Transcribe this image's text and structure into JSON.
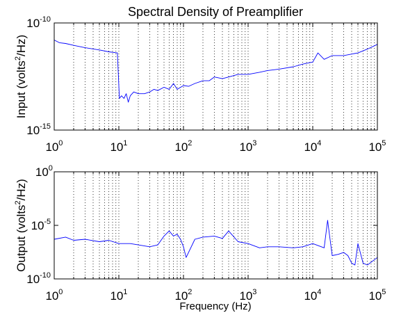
{
  "figure": {
    "title": "Spectral Density of Preamplifier",
    "xlabel": "Frequency (Hz)"
  },
  "chart_data": [
    {
      "type": "line",
      "ylabel": {
        "prefix": "Input (volts",
        "sup": "2",
        "suffix": "/Hz)"
      },
      "xscale": "log",
      "yscale": "log",
      "xlim": [
        1,
        100000
      ],
      "ylim": [
        1e-15,
        1e-10
      ],
      "grid": "dotted, x-axis (major and minor)",
      "line_color": "#0000ff",
      "x_tick_labels": [
        {
          "base": "10",
          "exp": "0"
        },
        {
          "base": "10",
          "exp": "1"
        },
        {
          "base": "10",
          "exp": "2"
        },
        {
          "base": "10",
          "exp": "3"
        },
        {
          "base": "10",
          "exp": "4"
        },
        {
          "base": "10",
          "exp": "5"
        }
      ],
      "y_tick_labels": [
        {
          "base": "10",
          "exp": "-15"
        },
        {
          "base": "10",
          "exp": "-10"
        }
      ],
      "series": [
        {
          "x": [
            1,
            1.2,
            1.5,
            2,
            3,
            5,
            7,
            9.5,
            10.2,
            11,
            12,
            13,
            14,
            15,
            17,
            20,
            25,
            30,
            35,
            40,
            50,
            60,
            70,
            80,
            100,
            120,
            150,
            200,
            250,
            300,
            400,
            500,
            700,
            1000,
            1500,
            2000,
            3000,
            5000,
            7000,
            10000,
            12000,
            15000,
            20000,
            30000,
            50000,
            70000,
            100000
          ],
          "y": [
            1.6e-11,
            1.2e-11,
            1.1e-11,
            9e-12,
            7e-12,
            5.5e-12,
            4.5e-12,
            4e-12,
            3e-14,
            4e-14,
            3e-14,
            5e-14,
            2e-14,
            4e-14,
            6e-14,
            5e-14,
            5e-14,
            6e-14,
            8e-14,
            7e-14,
            1e-13,
            8e-14,
            1.5e-13,
            8e-14,
            1.2e-13,
            1.1e-13,
            1.5e-13,
            2e-13,
            2e-13,
            3e-13,
            2.5e-13,
            3e-13,
            4e-13,
            4e-13,
            5e-13,
            6e-13,
            7e-13,
            9e-13,
            1.2e-12,
            1.5e-12,
            4e-12,
            2e-12,
            3e-12,
            3e-12,
            4e-12,
            6e-12,
            1e-11
          ]
        }
      ]
    },
    {
      "type": "line",
      "ylabel": {
        "prefix": "Output  (volts",
        "sup": "2",
        "suffix": "/Hz)"
      },
      "xscale": "log",
      "yscale": "log",
      "xlim": [
        1,
        100000
      ],
      "ylim": [
        1e-10,
        1
      ],
      "grid": "dotted, x-axis (major and minor)",
      "line_color": "#0000ff",
      "x_tick_labels": [
        {
          "base": "10",
          "exp": "0"
        },
        {
          "base": "10",
          "exp": "1"
        },
        {
          "base": "10",
          "exp": "2"
        },
        {
          "base": "10",
          "exp": "3"
        },
        {
          "base": "10",
          "exp": "4"
        },
        {
          "base": "10",
          "exp": "5"
        }
      ],
      "y_tick_labels": [
        {
          "base": "10",
          "exp": "-10"
        },
        {
          "base": "10",
          "exp": "-5"
        },
        {
          "base": "10",
          "exp": "0"
        }
      ],
      "series": [
        {
          "x": [
            1,
            1.5,
            2,
            3,
            5,
            7,
            10,
            15,
            20,
            30,
            40,
            50,
            60,
            70,
            80,
            90,
            100,
            110,
            150,
            200,
            300,
            400,
            500,
            700,
            1000,
            1500,
            2000,
            3000,
            5000,
            7000,
            10000,
            15000,
            17000,
            18000,
            20000,
            25000,
            30000,
            35000,
            40000,
            45000,
            50000,
            60000,
            70000,
            100000
          ],
          "y": [
            5e-07,
            8e-07,
            4e-07,
            5e-07,
            3e-07,
            4e-07,
            2e-07,
            2e-07,
            1.5e-07,
            1e-07,
            1.5e-07,
            1e-06,
            3e-06,
            1e-06,
            1.5e-06,
            5e-07,
            1e-07,
            1e-08,
            5e-07,
            8e-07,
            1e-06,
            6e-07,
            3e-06,
            3e-07,
            2e-07,
            8e-08,
            1e-07,
            1e-07,
            8e-08,
            1e-07,
            2e-07,
            8e-08,
            3e-05,
            2e-06,
            1.5e-08,
            2e-08,
            3e-08,
            1.5e-08,
            3e-09,
            2e-09,
            2e-07,
            3e-09,
            2e-09,
            1e-08
          ]
        }
      ]
    }
  ]
}
